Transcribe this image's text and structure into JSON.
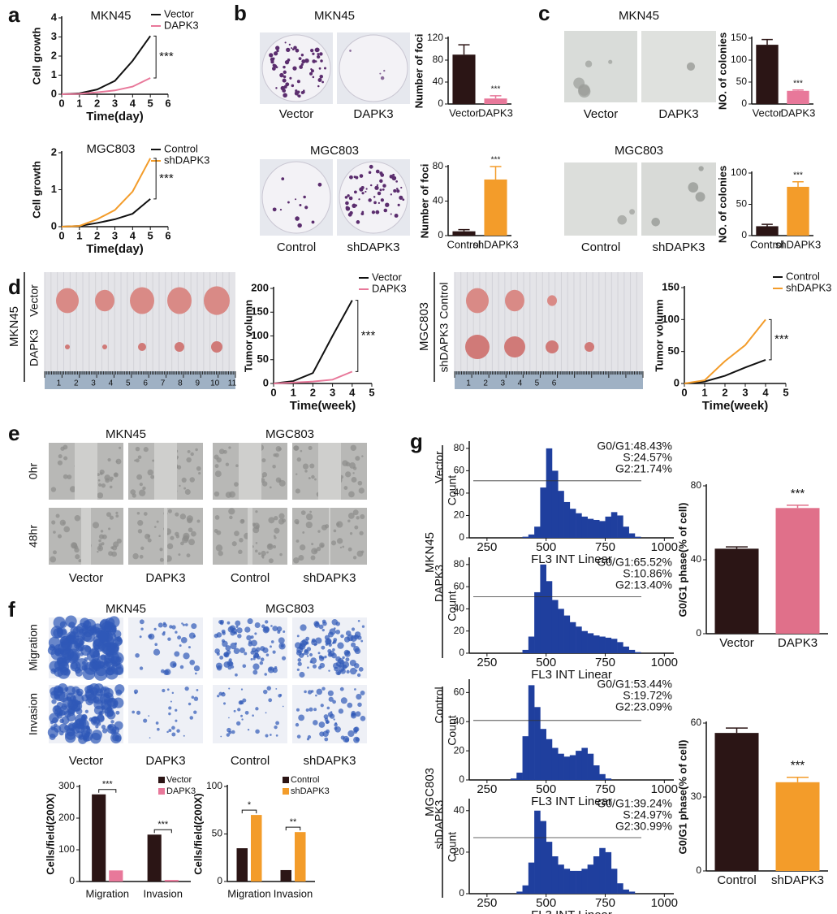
{
  "panels": [
    "a",
    "b",
    "c",
    "d",
    "e",
    "f",
    "g"
  ],
  "panel_b": {
    "top_title": "MKN45",
    "top_labels": [
      "Vector",
      "DAPK3"
    ],
    "bottom_title": "MGC803",
    "bottom_labels": [
      "Control",
      "shDAPK3"
    ]
  },
  "panel_c": {
    "top_title": "MKN45",
    "top_labels": [
      "Vector",
      "DAPK3"
    ],
    "bottom_title": "MGC803",
    "bottom_labels": [
      "Control",
      "shDAPK3"
    ]
  },
  "panel_d": {
    "left_cell": "MKN45",
    "left_rows": [
      "Vector",
      "DAPK3"
    ],
    "right_cell": "MGC803",
    "right_rows": [
      "Control",
      "shDAPK3"
    ],
    "ruler_left": [
      1,
      2,
      3,
      4,
      5,
      6,
      7,
      8,
      9,
      10,
      11
    ],
    "ruler_right": [
      1,
      2,
      3,
      4,
      5,
      6
    ]
  },
  "panel_e": {
    "titles": [
      "MKN45",
      "MGC803"
    ],
    "rows": [
      "0hr",
      "48hr"
    ],
    "columns": [
      "Vector",
      "DAPK3",
      "Control",
      "shDAPK3"
    ]
  },
  "panel_f": {
    "titles": [
      "MKN45",
      "MGC803"
    ],
    "rows": [
      "Migration",
      "Invasion"
    ],
    "columns": [
      "Vector",
      "DAPK3",
      "Control",
      "shDAPK3"
    ]
  },
  "panel_g": {
    "groups": [
      "MKN45",
      "MGC803"
    ]
  },
  "chart_data": [
    {
      "type": "line",
      "title": "MKN45",
      "xlabel": "Time(day)",
      "ylabel": "Cell growth",
      "x": [
        0,
        1,
        2,
        3,
        4,
        5
      ],
      "xlim": [
        0,
        6
      ],
      "xticks": [
        0,
        1,
        2,
        3,
        4,
        5,
        6
      ],
      "ylim": [
        0,
        4
      ],
      "yticks": [
        0,
        1,
        2,
        3,
        4
      ],
      "legend": "upper right",
      "annotation": "***",
      "series": [
        {
          "name": "Vector",
          "color": "#111111",
          "values": [
            0,
            0.05,
            0.25,
            0.7,
            1.75,
            3.05
          ]
        },
        {
          "name": "DAPK3",
          "color": "#e8789a",
          "values": [
            0,
            0.02,
            0.1,
            0.2,
            0.4,
            0.85
          ]
        }
      ]
    },
    {
      "type": "line",
      "title": "MGC803",
      "xlabel": "Time(day)",
      "ylabel": "Cell growth",
      "x": [
        0,
        1,
        2,
        3,
        4,
        5
      ],
      "xlim": [
        0,
        6
      ],
      "xticks": [
        0,
        1,
        2,
        3,
        4,
        5,
        6
      ],
      "ylim": [
        0,
        2
      ],
      "yticks": [
        0,
        1,
        2
      ],
      "legend": "upper right",
      "annotation": "***",
      "series": [
        {
          "name": "Control",
          "color": "#111111",
          "values": [
            0,
            0.02,
            0.1,
            0.2,
            0.35,
            0.75
          ]
        },
        {
          "name": "shDAPK3",
          "color": "#f39c2a",
          "values": [
            0,
            0.02,
            0.2,
            0.45,
            0.95,
            1.85
          ]
        }
      ]
    },
    {
      "type": "bar",
      "ylabel": "Number of foci",
      "categories": [
        "Vector",
        "DAPK3"
      ],
      "values": [
        90,
        10
      ],
      "errors": [
        18,
        5
      ],
      "colors": [
        "#2b1515",
        "#e8789a"
      ],
      "ylim": [
        0,
        120
      ],
      "yticks": [
        0,
        40,
        80,
        120
      ],
      "annotation": "***"
    },
    {
      "type": "bar",
      "ylabel": "Number of foci",
      "categories": [
        "Control",
        "shDAPK3"
      ],
      "values": [
        5,
        65
      ],
      "errors": [
        2,
        15
      ],
      "colors": [
        "#2b1515",
        "#f39c2a"
      ],
      "ylim": [
        0,
        80
      ],
      "yticks": [
        0,
        40,
        80
      ],
      "annotation": "***"
    },
    {
      "type": "bar",
      "ylabel": "NO. of colonies",
      "categories": [
        "Vector",
        "DAPK3"
      ],
      "values": [
        135,
        30
      ],
      "errors": [
        12,
        2
      ],
      "colors": [
        "#2b1515",
        "#e8789a"
      ],
      "ylim": [
        0,
        150
      ],
      "yticks": [
        0,
        50,
        100,
        150
      ],
      "annotation": "***"
    },
    {
      "type": "bar",
      "ylabel": "NO. of colonies",
      "categories": [
        "Control",
        "shDAPK3"
      ],
      "values": [
        15,
        78
      ],
      "errors": [
        3,
        8
      ],
      "colors": [
        "#2b1515",
        "#f39c2a"
      ],
      "ylim": [
        0,
        100
      ],
      "yticks": [
        0,
        50,
        100
      ],
      "annotation": "***"
    },
    {
      "type": "line",
      "xlabel": "Time(week)",
      "ylabel": "Tumor volumn",
      "x": [
        0,
        1,
        2,
        3,
        4
      ],
      "xlim": [
        0,
        5
      ],
      "xticks": [
        0,
        1,
        2,
        3,
        4,
        5
      ],
      "ylim": [
        0,
        200
      ],
      "yticks": [
        0,
        50,
        100,
        150,
        200
      ],
      "legend": "upper right",
      "annotation": "***",
      "series": [
        {
          "name": "Vector",
          "color": "#111111",
          "values": [
            0,
            5,
            22,
            100,
            175
          ]
        },
        {
          "name": "DAPK3",
          "color": "#e8789a",
          "values": [
            0,
            2,
            4,
            8,
            25
          ]
        }
      ]
    },
    {
      "type": "line",
      "xlabel": "Time(week)",
      "ylabel": "Tumor volumn",
      "x": [
        0,
        1,
        2,
        3,
        4
      ],
      "xlim": [
        0,
        5
      ],
      "xticks": [
        0,
        1,
        2,
        3,
        4,
        5
      ],
      "ylim": [
        0,
        150
      ],
      "yticks": [
        0,
        50,
        100,
        150
      ],
      "legend": "upper right",
      "annotation": "***",
      "series": [
        {
          "name": "Control",
          "color": "#111111",
          "values": [
            0,
            3,
            12,
            25,
            37
          ]
        },
        {
          "name": "shDAPK3",
          "color": "#f39c2a",
          "values": [
            0,
            5,
            35,
            60,
            100
          ]
        }
      ]
    },
    {
      "type": "grouped_bar",
      "ylabel": "Cells/field(200X)",
      "categories": [
        "Migration",
        "Invasion"
      ],
      "ylim": [
        0,
        300
      ],
      "yticks": [
        0,
        100,
        200,
        300
      ],
      "legend": "upper right",
      "annotations": [
        "***",
        "***"
      ],
      "series": [
        {
          "name": "Vector",
          "color": "#2b1515",
          "values": [
            275,
            148
          ]
        },
        {
          "name": "DAPK3",
          "color": "#e8789a",
          "values": [
            35,
            5
          ]
        }
      ]
    },
    {
      "type": "grouped_bar",
      "ylabel": "Cells/field(200X)",
      "categories": [
        "Migration",
        "Invasion"
      ],
      "ylim": [
        0,
        100
      ],
      "yticks": [
        0,
        50,
        100
      ],
      "legend": "upper right",
      "annotations": [
        "*",
        "**"
      ],
      "series": [
        {
          "name": "Control",
          "color": "#2b1515",
          "values": [
            35,
            12
          ]
        },
        {
          "name": "shDAPK3",
          "color": "#f39c2a",
          "values": [
            70,
            52
          ]
        }
      ]
    },
    {
      "type": "histogram",
      "group": "Vector",
      "ylabel": "Count",
      "xlabel": "FL3 INT Linear",
      "color": "#1f3f9e",
      "xlim": [
        175,
        1040
      ],
      "xticks": [
        250,
        500,
        750,
        1000
      ],
      "ylim": [
        0,
        85
      ],
      "yticks": [
        0,
        20,
        40,
        60,
        80
      ],
      "annotations": [
        "G0/G1:48.43%",
        "S:24.57%",
        "G2:21.74%"
      ],
      "bins": [
        300,
        325,
        350,
        375,
        400,
        425,
        450,
        475,
        500,
        525,
        550,
        575,
        600,
        625,
        650,
        675,
        700,
        725,
        750,
        775,
        800,
        825,
        850,
        875,
        900,
        925,
        950,
        975,
        1000
      ],
      "counts": [
        0,
        0,
        0,
        0,
        1,
        3,
        10,
        45,
        80,
        60,
        42,
        32,
        26,
        22,
        19,
        17,
        16,
        15,
        19,
        23,
        20,
        10,
        4,
        1,
        0,
        0,
        0,
        0
      ]
    },
    {
      "type": "histogram",
      "group": "DAPK3",
      "ylabel": "Count",
      "xlabel": "FL3 INT Linear",
      "color": "#1f3f9e",
      "xlim": [
        175,
        1040
      ],
      "xticks": [
        250,
        500,
        750,
        1000
      ],
      "ylim": [
        0,
        85
      ],
      "yticks": [
        0,
        20,
        40,
        60,
        80
      ],
      "annotations": [
        "G0/G1:65.52%",
        "S:10.86%",
        "G2:13.40%"
      ],
      "bins": [
        300,
        325,
        350,
        375,
        400,
        425,
        450,
        475,
        500,
        525,
        550,
        575,
        600,
        625,
        650,
        675,
        700,
        725,
        750,
        775,
        800,
        825,
        850,
        875,
        900,
        925,
        950,
        975,
        1000
      ],
      "counts": [
        0,
        0,
        0,
        0,
        3,
        15,
        55,
        80,
        65,
        48,
        40,
        34,
        28,
        24,
        20,
        18,
        16,
        15,
        14,
        13,
        10,
        6,
        3,
        1,
        0,
        0,
        0,
        0
      ]
    },
    {
      "type": "histogram",
      "group": "Control",
      "ylabel": "Count",
      "xlabel": "FL3 INT Linear",
      "color": "#1f3f9e",
      "xlim": [
        175,
        1040
      ],
      "xticks": [
        250,
        500,
        750,
        1000
      ],
      "ylim": [
        0,
        68
      ],
      "yticks": [
        0,
        20,
        40,
        60
      ],
      "annotations": [
        "G0/G1:53.44%",
        "S:19.72%",
        "G2:23.09%"
      ],
      "bins": [
        300,
        325,
        350,
        375,
        400,
        425,
        450,
        475,
        500,
        525,
        550,
        575,
        600,
        625,
        650,
        675,
        700,
        725,
        750,
        775,
        800,
        825,
        850,
        875,
        900,
        925,
        950,
        975,
        1000
      ],
      "counts": [
        0,
        0,
        1,
        5,
        30,
        65,
        50,
        35,
        28,
        22,
        18,
        16,
        17,
        20,
        22,
        18,
        10,
        4,
        1,
        0,
        0,
        0,
        0,
        0,
        0,
        0,
        0,
        0
      ]
    },
    {
      "type": "histogram",
      "group": "shDAPK3",
      "ylabel": "Count",
      "xlabel": "FL3 INT Linear",
      "color": "#1f3f9e",
      "xlim": [
        175,
        1040
      ],
      "xticks": [
        250,
        500,
        750,
        1000
      ],
      "ylim": [
        0,
        45
      ],
      "yticks": [
        0,
        20,
        40
      ],
      "annotations": [
        "G0/G1:39.24%",
        "S:24.97%",
        "G2:30.99%"
      ],
      "bins": [
        300,
        325,
        350,
        375,
        400,
        425,
        450,
        475,
        500,
        525,
        550,
        575,
        600,
        625,
        650,
        675,
        700,
        725,
        750,
        775,
        800,
        825,
        850,
        875,
        900,
        925,
        950,
        975,
        1000
      ],
      "counts": [
        0,
        0,
        0,
        1,
        4,
        15,
        40,
        35,
        25,
        18,
        14,
        12,
        11,
        11,
        12,
        14,
        18,
        22,
        20,
        12,
        5,
        2,
        1,
        0,
        0,
        0,
        0,
        0
      ]
    },
    {
      "type": "bar",
      "ylabel": "G0/G1 phase(% of cell)",
      "categories": [
        "Vector",
        "DAPK3"
      ],
      "values": [
        46,
        68
      ],
      "errors": [
        1,
        1.5
      ],
      "colors": [
        "#2b1515",
        "#e0708a"
      ],
      "ylim": [
        0,
        80
      ],
      "yticks": [
        0,
        40,
        80
      ],
      "annotation": "***"
    },
    {
      "type": "bar",
      "ylabel": "G0/G1 phase(% of cell)",
      "categories": [
        "Control",
        "shDAPK3"
      ],
      "values": [
        56,
        36
      ],
      "errors": [
        2,
        2
      ],
      "colors": [
        "#2b1515",
        "#f39c2a"
      ],
      "ylim": [
        0,
        60
      ],
      "yticks": [
        0,
        30,
        60
      ],
      "annotation": "***"
    }
  ]
}
